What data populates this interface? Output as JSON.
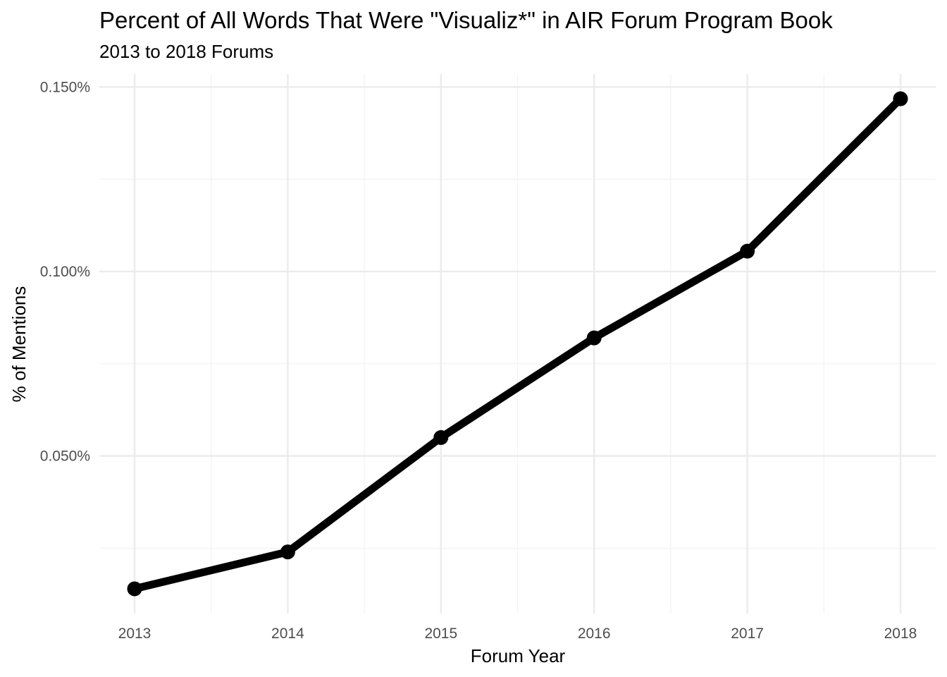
{
  "chart_data": {
    "type": "line",
    "title": "Percent of All Words That Were \"Visualiz*\" in AIR Forum Program Book",
    "subtitle": "2013 to 2018 Forums",
    "xlabel": "Forum Year",
    "ylabel": "% of Mentions",
    "x": [
      2013,
      2014,
      2015,
      2016,
      2017,
      2018
    ],
    "series": [
      {
        "values": [
          0.014,
          0.024,
          0.055,
          0.082,
          0.1055,
          0.1468
        ],
        "color": "#000000"
      }
    ],
    "x_ticks": [
      "2013",
      "2014",
      "2015",
      "2016",
      "2017",
      "2018"
    ],
    "xlim": [
      2012.77,
      2018.23
    ],
    "y_ticks": [
      {
        "value": 0.05,
        "label": "0.050%"
      },
      {
        "value": 0.1,
        "label": "0.100%"
      },
      {
        "value": 0.15,
        "label": "0.150%"
      }
    ],
    "y_minor_ticks": [
      0.025,
      0.075,
      0.125
    ],
    "ylim": [
      0.0073,
      0.1535
    ],
    "grid": true,
    "legend": "none",
    "colors": {
      "line": "#000000",
      "grid_major": "#ebebeb",
      "grid_minor": "#f2f2f2",
      "tick_text": "#4d4d4d",
      "background": "#ffffff"
    }
  }
}
